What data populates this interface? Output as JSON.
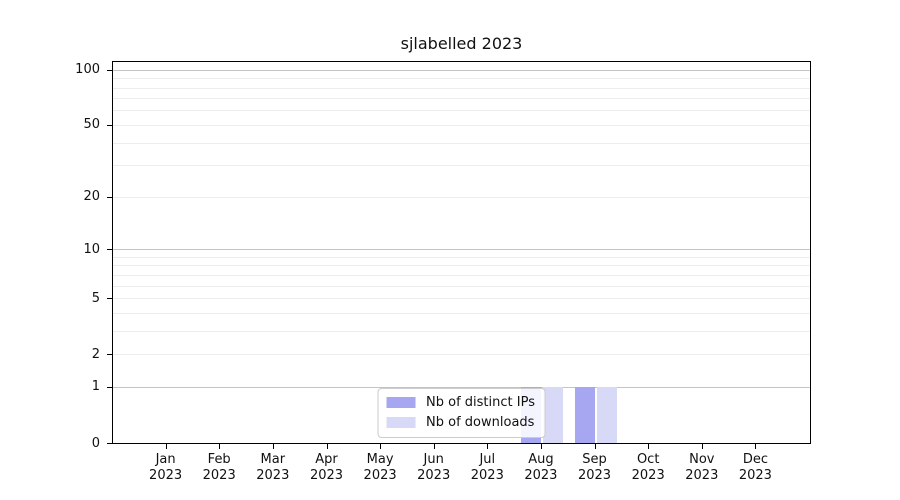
{
  "chart_data": {
    "type": "bar",
    "title": "sjlabelled 2023",
    "months": [
      "Jan",
      "Feb",
      "Mar",
      "Apr",
      "May",
      "Jun",
      "Jul",
      "Aug",
      "Sep",
      "Oct",
      "Nov",
      "Dec"
    ],
    "year_label": "2023",
    "series": [
      {
        "name": "Nb of distinct IPs",
        "color": "#a7a7f1",
        "values": [
          0,
          0,
          0,
          0,
          0,
          0,
          0,
          1,
          1,
          0,
          0,
          0
        ]
      },
      {
        "name": "Nb of downloads",
        "color": "#d8d8f7",
        "values": [
          0,
          0,
          0,
          0,
          0,
          0,
          0,
          1,
          1,
          0,
          0,
          0
        ]
      }
    ],
    "yscale": "log1p",
    "ylim": [
      0,
      110
    ],
    "y_labeled_ticks": [
      0,
      1,
      2,
      5,
      10,
      20,
      50,
      100
    ],
    "y_major_gridlines": [
      1,
      10,
      100
    ],
    "y_minor_gridlines": [
      2,
      3,
      4,
      5,
      6,
      7,
      8,
      9,
      20,
      30,
      40,
      50,
      60,
      70,
      80,
      90
    ],
    "grid": true,
    "legend_position": "lower center",
    "colors": {
      "major_gridline": "#c4c4c4",
      "minor_gridline": "#ededed",
      "spine": "#000000",
      "background": "#ffffff",
      "text": "#111111"
    }
  }
}
